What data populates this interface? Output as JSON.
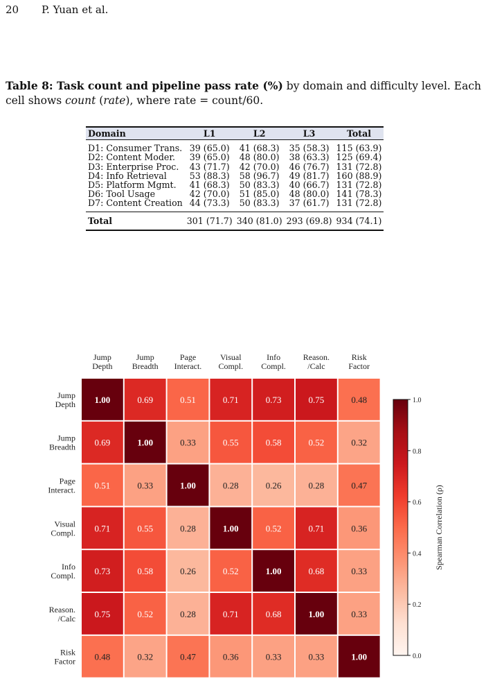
{
  "header": {
    "page_number": "20",
    "authors": "P. Yuan et al."
  },
  "caption": {
    "label": "Table 8: Task count and pipeline pass rate (%)",
    "text1": " by domain and difficulty level. Each cell shows ",
    "count_word": "count",
    "open_paren": " (",
    "rate_word": "rate",
    "text2": "), where rate = count/60."
  },
  "table": {
    "headers": [
      "Domain",
      "L1",
      "L2",
      "L3",
      "Total"
    ],
    "rows": [
      [
        "D1: Consumer Trans.",
        "39 (65.0)",
        "41 (68.3)",
        "35 (58.3)",
        "115 (63.9)"
      ],
      [
        "D2: Content Moder.",
        "39 (65.0)",
        "48 (80.0)",
        "38 (63.3)",
        "125 (69.4)"
      ],
      [
        "D3: Enterprise Proc.",
        "43 (71.7)",
        "42 (70.0)",
        "46 (76.7)",
        "131 (72.8)"
      ],
      [
        "D4: Info Retrieval",
        "53 (88.3)",
        "58 (96.7)",
        "49 (81.7)",
        "160 (88.9)"
      ],
      [
        "D5: Platform Mgmt.",
        "41 (68.3)",
        "50 (83.3)",
        "40 (66.7)",
        "131 (72.8)"
      ],
      [
        "D6: Tool Usage",
        "42 (70.0)",
        "51 (85.0)",
        "48 (80.0)",
        "141 (78.3)"
      ],
      [
        "D7: Content Creation",
        "44 (73.3)",
        "50 (83.3)",
        "37 (61.7)",
        "131 (72.8)"
      ]
    ],
    "total": [
      "Total",
      "301 (71.7)",
      "340 (81.0)",
      "293 (69.8)",
      "934 (74.1)"
    ]
  },
  "chart_data": {
    "type": "heatmap",
    "x_labels": [
      "Jump\nDepth",
      "Jump\nBreadth",
      "Page\nInteract.",
      "Visual\nCompl.",
      "Info\nCompl.",
      "Reason.\n/Calc",
      "Risk\nFactor"
    ],
    "y_labels": [
      "Jump\nDepth",
      "Jump\nBreadth",
      "Page\nInteract.",
      "Visual\nCompl.",
      "Info\nCompl.",
      "Reason.\n/Calc",
      "Risk\nFactor"
    ],
    "values": [
      [
        1.0,
        0.69,
        0.51,
        0.71,
        0.73,
        0.75,
        0.48
      ],
      [
        0.69,
        1.0,
        0.33,
        0.55,
        0.58,
        0.52,
        0.32
      ],
      [
        0.51,
        0.33,
        1.0,
        0.28,
        0.26,
        0.28,
        0.47
      ],
      [
        0.71,
        0.55,
        0.28,
        1.0,
        0.52,
        0.71,
        0.36
      ],
      [
        0.73,
        0.58,
        0.26,
        0.52,
        1.0,
        0.68,
        0.33
      ],
      [
        0.75,
        0.52,
        0.28,
        0.71,
        0.68,
        1.0,
        0.33
      ],
      [
        0.48,
        0.32,
        0.47,
        0.36,
        0.33,
        0.33,
        1.0
      ]
    ],
    "colorbar": {
      "label": "Spearman Correlation (ρ)",
      "range": [
        0.0,
        1.0
      ],
      "ticks": [
        "0.0",
        "0.2",
        "0.4",
        "0.6",
        "0.8",
        "1.0"
      ],
      "colormap": "Reds"
    }
  }
}
